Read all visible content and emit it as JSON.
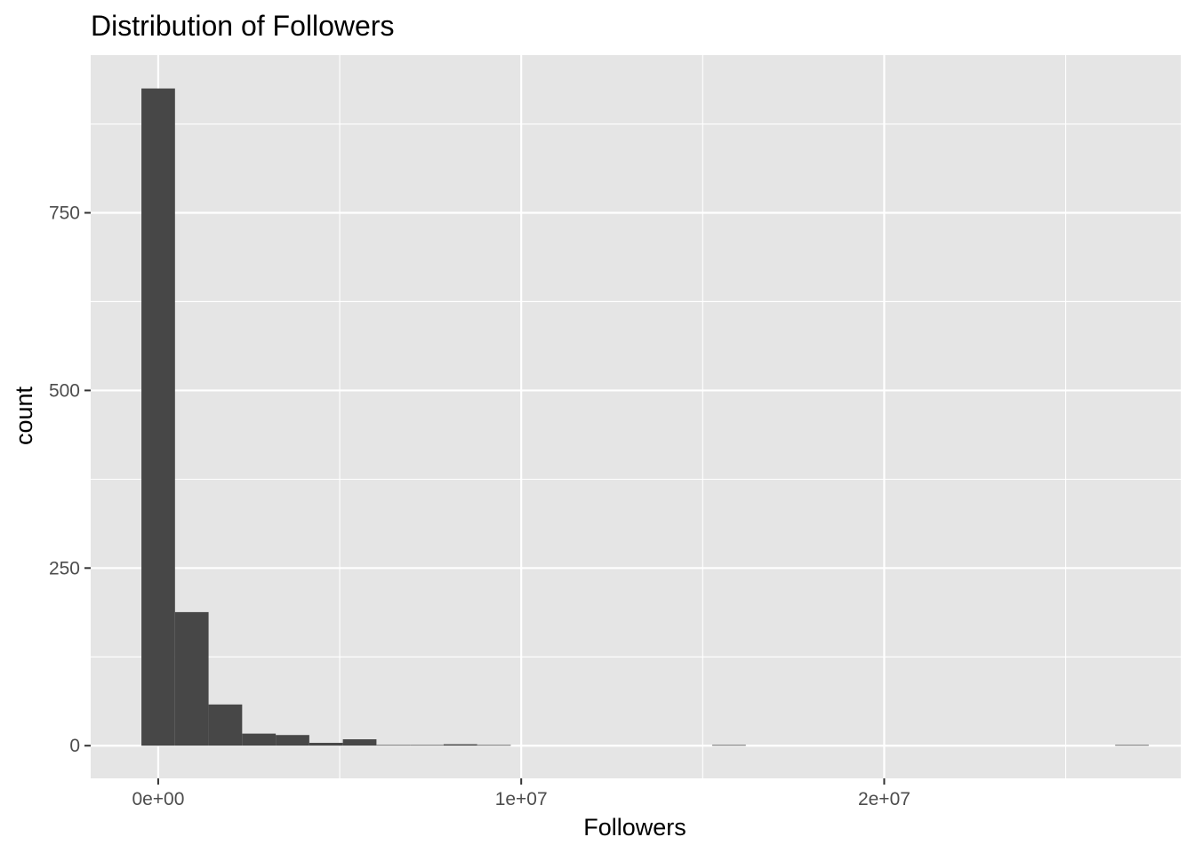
{
  "chart_data": {
    "type": "bar",
    "title": "Distribution of Followers",
    "xlabel": "Followers",
    "ylabel": "count",
    "x_ticks": [
      {
        "value": 0,
        "label": "0e+00"
      },
      {
        "value": 10000000,
        "label": "1e+07"
      },
      {
        "value": 20000000,
        "label": "2e+07"
      }
    ],
    "y_ticks": [
      {
        "value": 0,
        "label": "0"
      },
      {
        "value": 250,
        "label": "250"
      },
      {
        "value": 500,
        "label": "500"
      },
      {
        "value": 750,
        "label": "750"
      }
    ],
    "xlim": [
      -1860000,
      28170000
    ],
    "ylim": [
      -46,
      972
    ],
    "bin_width": 925000,
    "bin_centers": [
      0,
      925000,
      1850000,
      2775000,
      3700000,
      4625000,
      5550000,
      6475000,
      7400000,
      8325000,
      9250000,
      15725000,
      26825000
    ],
    "values": [
      925,
      188,
      58,
      17,
      15,
      4,
      9,
      1,
      1,
      2,
      1,
      1,
      1
    ],
    "panel_background": "#e5e5e5",
    "grid_color": "#ffffff",
    "bar_color": "#474747",
    "grid": true,
    "legend": "none"
  }
}
